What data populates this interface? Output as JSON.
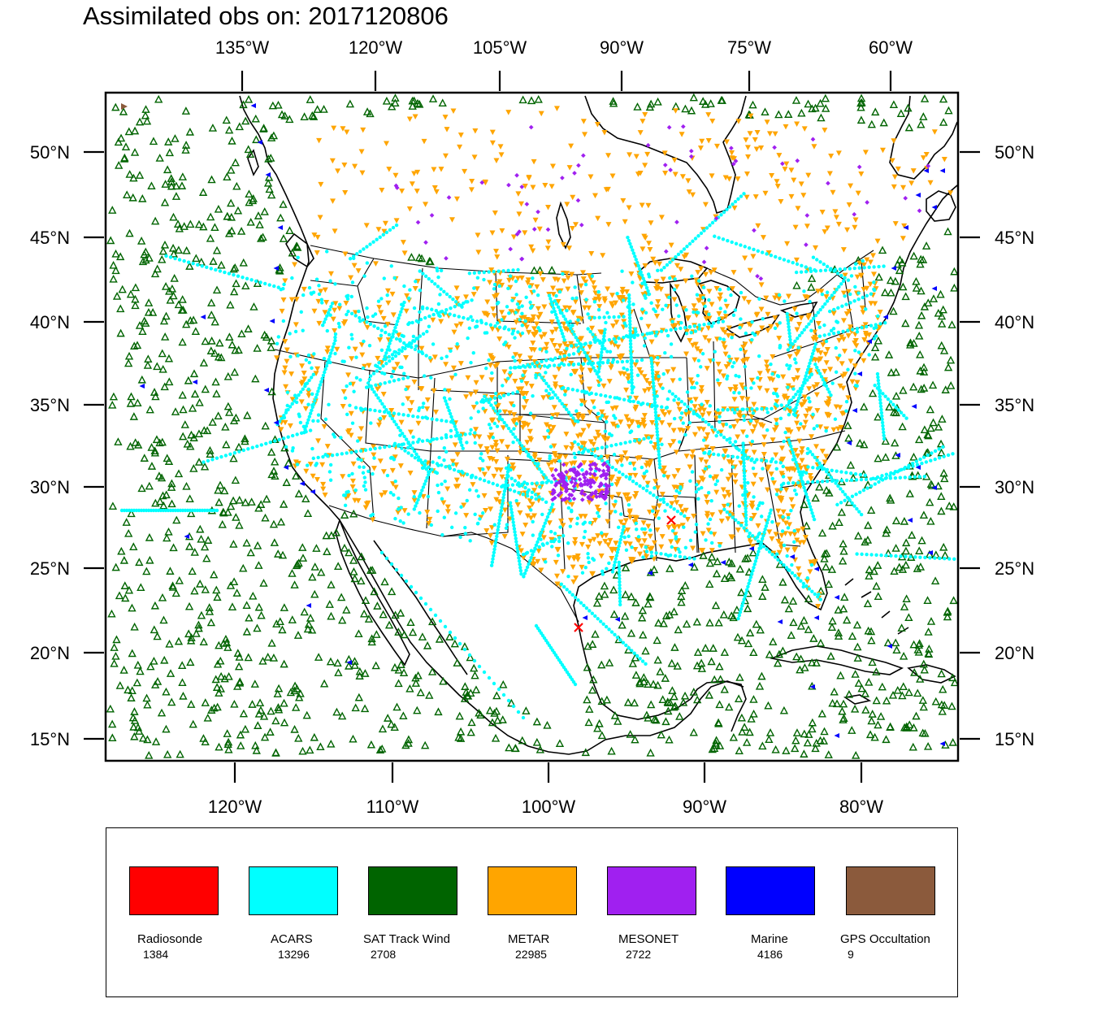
{
  "title": "Assimilated obs on: 2017120806",
  "axes": {
    "top_lon_labels": [
      "135°W",
      "120°W",
      "105°W",
      "90°W",
      "75°W",
      "60°W"
    ],
    "bottom_lon_labels": [
      "120°W",
      "110°W",
      "100°W",
      "90°W",
      "80°W"
    ],
    "lat_labels": [
      "50°N",
      "45°N",
      "40°N",
      "35°N",
      "30°N",
      "25°N",
      "20°N",
      "15°N"
    ]
  },
  "legend": [
    {
      "name": "Radiosonde",
      "count": "1384",
      "color": "#ff0000"
    },
    {
      "name": "ACARS",
      "count": "13296",
      "color": "#00ffff"
    },
    {
      "name": "SAT Track Wind",
      "count": "2708",
      "color": "#006400"
    },
    {
      "name": "METAR",
      "count": "22985",
      "color": "#ffa500"
    },
    {
      "name": "MESONET",
      "count": "2722",
      "color": "#a020f0"
    },
    {
      "name": "Marine",
      "count": "4186",
      "color": "#0000ff"
    },
    {
      "name": "GPS Occultation",
      "count": "9",
      "color": "#8b5a3c"
    }
  ]
}
